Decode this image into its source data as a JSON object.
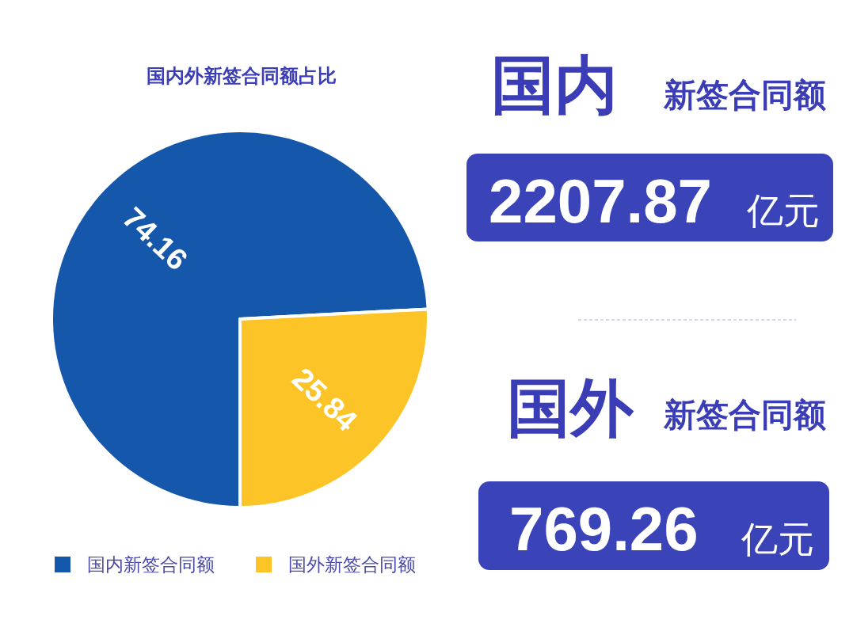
{
  "chart_data": [
    {
      "type": "pie",
      "title": "国内外新签合同额占比",
      "categories": [
        "国内新签合同额",
        "国外新签合同额"
      ],
      "values": [
        74.16,
        25.84
      ],
      "colors": [
        "#1558ab",
        "#fcc427"
      ],
      "data_labels": true,
      "legend": "bottom"
    },
    {
      "type": "other",
      "annotations": [
        "国内",
        "新签合同额",
        "2207.87",
        "亿元",
        "国外",
        "新签合同额",
        "769.26",
        "亿元"
      ]
    }
  ]
}
